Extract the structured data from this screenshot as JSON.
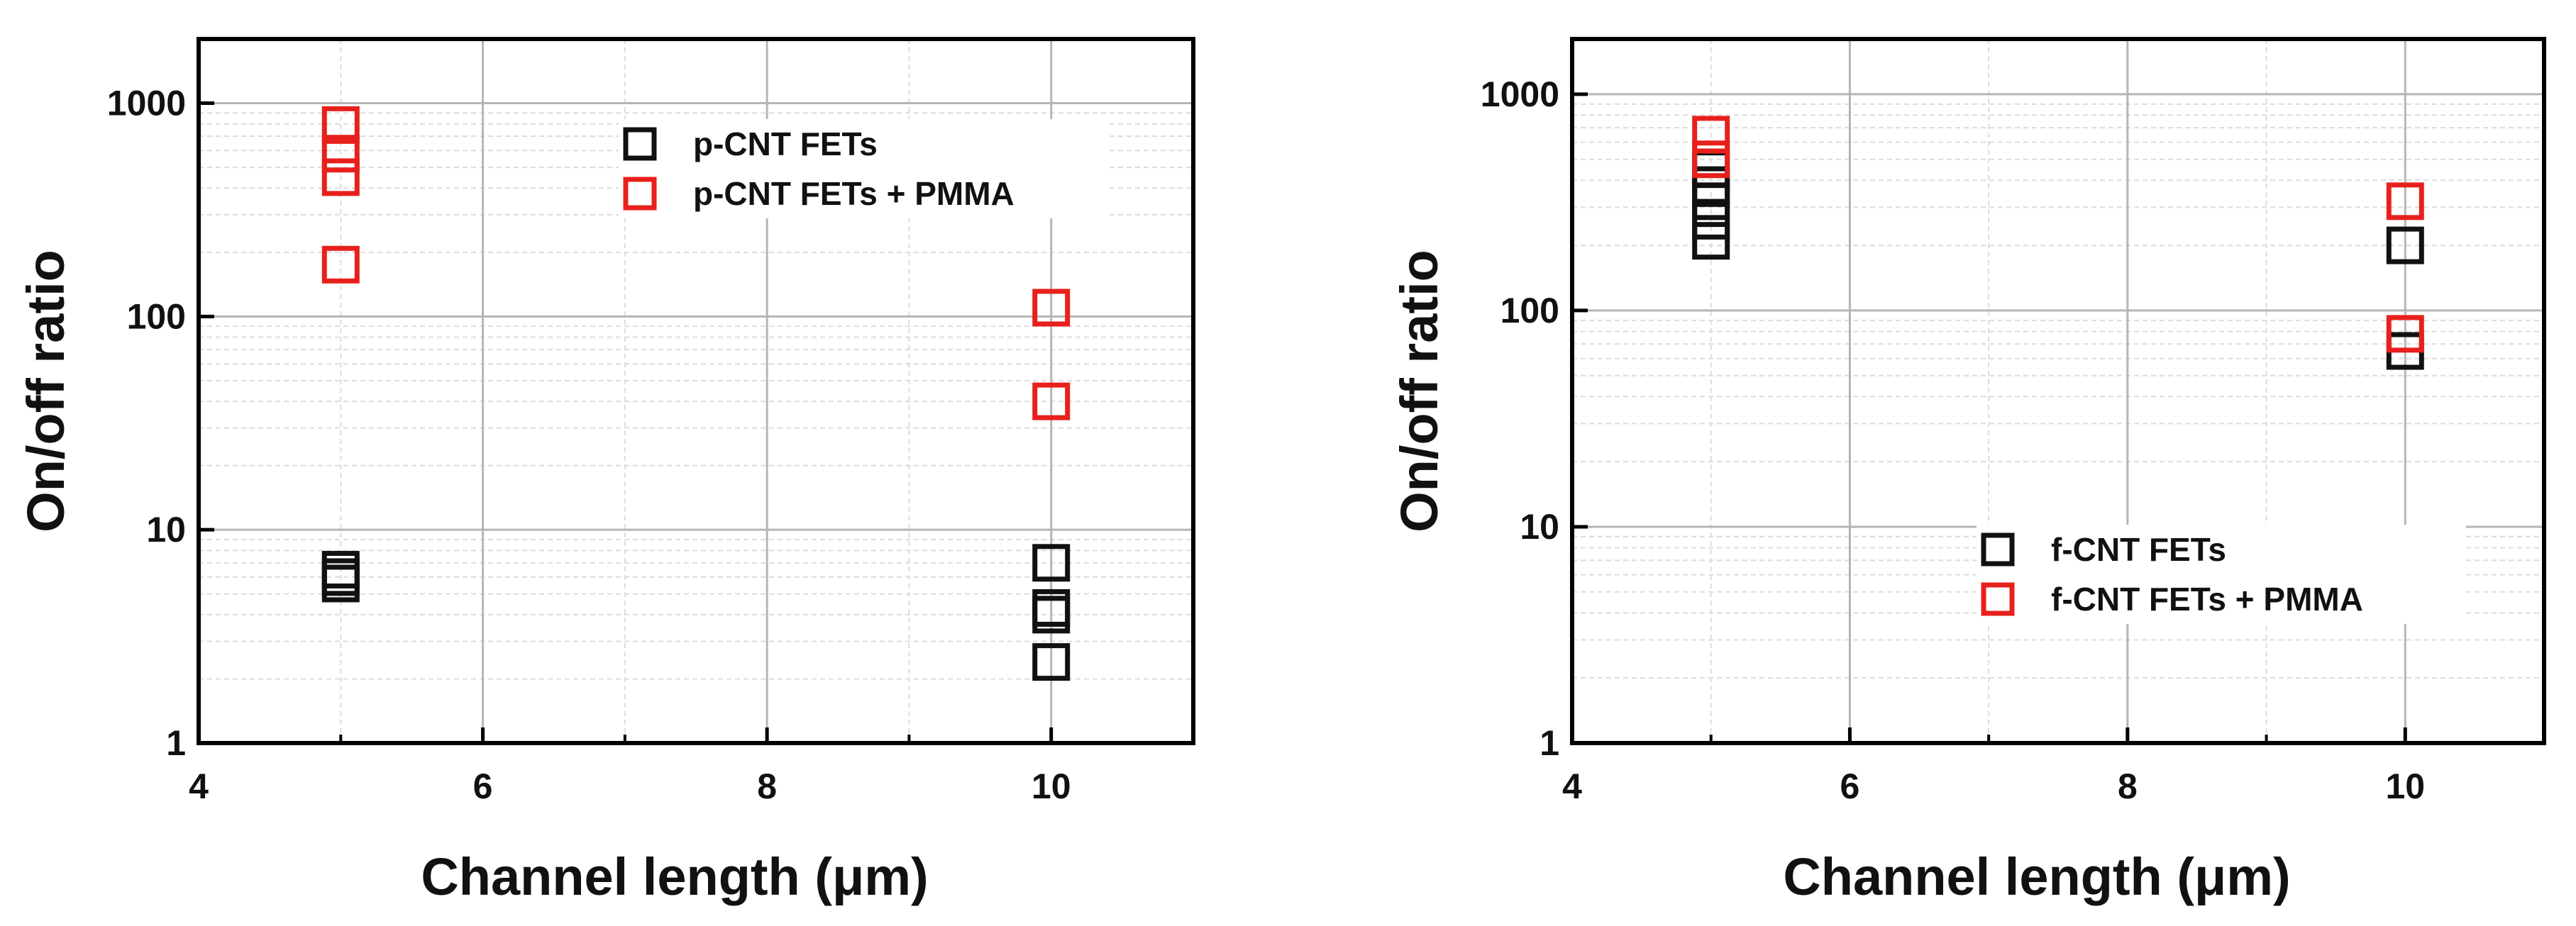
{
  "colors": {
    "series_1": "#111111",
    "series_2": "#e8201c",
    "grid_major": "#b5b5b5",
    "grid_minor": "#dcdcdc",
    "frame": "#000000"
  },
  "chart_data": [
    {
      "type": "scatter",
      "title": "",
      "xlabel": "Channel length (μm)",
      "ylabel": "On/off ratio",
      "xlim": [
        4,
        11
      ],
      "ylim": [
        1,
        2000
      ],
      "yscale": "log",
      "xticks": [
        4,
        6,
        8,
        10
      ],
      "xtick_labels": [
        "4",
        "6",
        "8",
        "10"
      ],
      "yticks": [
        1,
        10,
        100,
        1000
      ],
      "ytick_labels": [
        "1",
        "10",
        "100",
        "1000"
      ],
      "grid": true,
      "legend_position": "top-right",
      "series": [
        {
          "name": "p-CNT FETs",
          "marker": "open-square",
          "color": "#111111",
          "points": [
            [
              5,
              5.6
            ],
            [
              5,
              6.0
            ],
            [
              5,
              6.5
            ],
            [
              10,
              2.4
            ],
            [
              10,
              4.0
            ],
            [
              10,
              4.3
            ],
            [
              10,
              7.0
            ]
          ]
        },
        {
          "name": "p-CNT FETs + PMMA",
          "marker": "open-square",
          "color": "#e8201c",
          "points": [
            [
              5,
              175
            ],
            [
              5,
              450
            ],
            [
              5,
              580
            ],
            [
              5,
              790
            ],
            [
              10,
              40
            ],
            [
              10,
              110
            ]
          ]
        }
      ]
    },
    {
      "type": "scatter",
      "title": "",
      "xlabel": "Channel length (μm)",
      "ylabel": "On/off ratio",
      "xlim": [
        4,
        11
      ],
      "ylim": [
        1,
        1800
      ],
      "yscale": "log",
      "xticks": [
        4,
        6,
        8,
        10
      ],
      "xtick_labels": [
        "4",
        "6",
        "8",
        "10"
      ],
      "yticks": [
        1,
        10,
        100,
        1000
      ],
      "ytick_labels": [
        "1",
        "10",
        "100",
        "1000"
      ],
      "grid": true,
      "legend_position": "bottom-right",
      "series": [
        {
          "name": "f-CNT FETs",
          "marker": "open-square",
          "color": "#111111",
          "points": [
            [
              5,
              210
            ],
            [
              5,
              260
            ],
            [
              5,
              320
            ],
            [
              5,
              380
            ],
            [
              5,
              450
            ],
            [
              10,
              65
            ],
            [
              10,
              200
            ]
          ]
        },
        {
          "name": "f-CNT FETs + PMMA",
          "marker": "open-square",
          "color": "#e8201c",
          "points": [
            [
              5,
              500
            ],
            [
              5,
              650
            ],
            [
              10,
              78
            ],
            [
              10,
              320
            ]
          ]
        }
      ]
    }
  ]
}
